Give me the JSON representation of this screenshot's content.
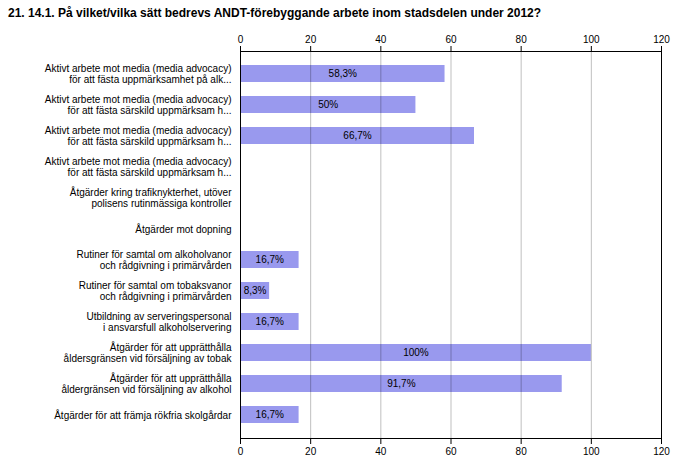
{
  "chart_data": {
    "type": "bar",
    "orientation": "horizontal",
    "title": "21. 14.1. På vilket/vilka sätt bedrevs ANDT-förebyggande arbete inom stadsdelen under 2012?",
    "categories": [
      "Aktivt arbete mot media (media advocacy)\nför att fästa uppmärksamhet på alk...",
      "Aktivt arbete mot media (media advocacy)\nför att fästa särskild uppmärksam h...",
      "Aktivt arbete mot media (media advocacy)\nför att fästa särskild uppmärksam h...",
      "Aktivt arbete mot media (media advocacy)\nför att fästa särskild uppmärksam h...",
      "Åtgärder kring trafiknykterhet, utöver\npolisens rutinmässiga kontroller",
      "Åtgärder mot dopning",
      "Rutiner för samtal om alkoholvanor\noch rådgivning i primärvården",
      "Rutiner för samtal om tobaksvanor\noch rådgivning i primärvården",
      "Utbildning av serveringspersonal\ni ansvarsfull alkoholservering",
      "Åtgärder för att upprätthålla\nåldersgränsen vid försäljning av tobak",
      "Åtgärder för att upprätthålla\nåldergränsen vid försäljning av alkohol",
      "Åtgärder för att främja rökfria skolgårdar"
    ],
    "values": [
      58.3,
      50.0,
      66.7,
      0.0,
      0.0,
      0.0,
      16.7,
      8.3,
      16.7,
      100.0,
      91.7,
      16.7
    ],
    "value_labels": [
      "58,3%",
      "50%",
      "66,7%",
      null,
      null,
      null,
      "16,7%",
      "8,3%",
      "16,7%",
      "100%",
      "91,7%",
      "16,7%"
    ],
    "color": "#9999ee",
    "xlim": [
      0,
      120
    ],
    "xticks": [
      0,
      20,
      40,
      60,
      80,
      100,
      120
    ],
    "grid": true
  }
}
